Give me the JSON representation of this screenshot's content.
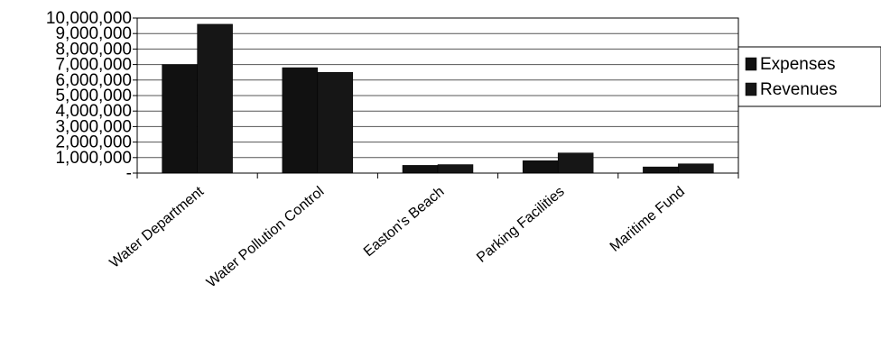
{
  "chart_data": {
    "type": "bar",
    "title": "",
    "xlabel": "",
    "ylabel": "",
    "categories": [
      "Water Department",
      "Water Pollution Control",
      "Easton's Beach",
      "Parking Facilities",
      "Maritime Fund"
    ],
    "series": [
      {
        "name": "Expenses",
        "values": [
          7000000,
          6800000,
          500000,
          800000,
          400000
        ],
        "color": "#111111"
      },
      {
        "name": "Revenues",
        "values": [
          9600000,
          6500000,
          550000,
          1300000,
          600000
        ],
        "color": "#161616"
      }
    ],
    "ylim": [
      0,
      10000000
    ],
    "yticks": [
      {
        "value": 0,
        "label": "-"
      },
      {
        "value": 1000000,
        "label": "1,000,000"
      },
      {
        "value": 2000000,
        "label": "2,000,000"
      },
      {
        "value": 3000000,
        "label": "3,000,000"
      },
      {
        "value": 4000000,
        "label": "4,000,000"
      },
      {
        "value": 5000000,
        "label": "5,000,000"
      },
      {
        "value": 6000000,
        "label": "6,000,000"
      },
      {
        "value": 7000000,
        "label": "7,000,000"
      },
      {
        "value": 8000000,
        "label": "8,000,000"
      },
      {
        "value": 9000000,
        "label": "9,000,000"
      },
      {
        "value": 10000000,
        "label": "10,000,000"
      }
    ],
    "grid": true,
    "legend": "right"
  }
}
